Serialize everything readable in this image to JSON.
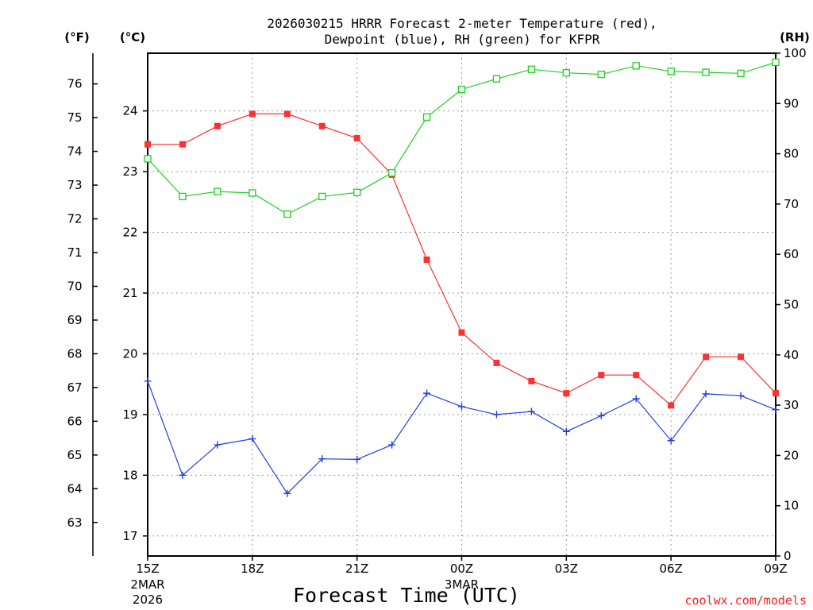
{
  "chart_data": {
    "type": "line",
    "title_line1": "2026030215 HRRR Forecast 2-meter Temperature (red),",
    "title_line2": "Dewpoint (blue), RH (green) for KFPR",
    "xlabel": "Forecast Time (UTC)",
    "credit": "coolwx.com/models",
    "units": {
      "fahrenheit": "(°F)",
      "celsius": "(°C)",
      "rh": "(RH)"
    },
    "x_hours": [
      0,
      1,
      2,
      3,
      4,
      5,
      6,
      7,
      8,
      9,
      10,
      11,
      12,
      13,
      14,
      15,
      16,
      17,
      18
    ],
    "x_range": [
      0,
      18
    ],
    "x_ticks": [
      {
        "hour": 0,
        "label": "15Z",
        "sub1": "2MAR",
        "sub2": "2026"
      },
      {
        "hour": 3,
        "label": "18Z",
        "sub1": "",
        "sub2": ""
      },
      {
        "hour": 6,
        "label": "21Z",
        "sub1": "",
        "sub2": ""
      },
      {
        "hour": 9,
        "label": "00Z",
        "sub1": "3MAR",
        "sub2": ""
      },
      {
        "hour": 12,
        "label": "03Z",
        "sub1": "",
        "sub2": ""
      },
      {
        "hour": 15,
        "label": "06Z",
        "sub1": "",
        "sub2": ""
      },
      {
        "hour": 18,
        "label": "09Z",
        "sub1": "",
        "sub2": ""
      }
    ],
    "celsius_range": [
      16.67,
      24.95
    ],
    "celsius_ticks": [
      17,
      18,
      19,
      20,
      21,
      22,
      23,
      24
    ],
    "fahrenheit_ticks": [
      63,
      64,
      65,
      66,
      67,
      68,
      69,
      70,
      71,
      72,
      73,
      74,
      75,
      76
    ],
    "rh_range": [
      0,
      100
    ],
    "rh_ticks": [
      0,
      10,
      20,
      30,
      40,
      50,
      60,
      70,
      80,
      90,
      100
    ],
    "series": [
      {
        "name": "Temperature",
        "axis": "celsius",
        "color": "#ff3030",
        "marker": "filled-square",
        "values": [
          23.45,
          23.45,
          23.75,
          23.95,
          23.95,
          23.75,
          23.55,
          22.95,
          21.55,
          20.35,
          19.85,
          19.55,
          19.35,
          19.65,
          19.65,
          19.15,
          19.95,
          19.95,
          19.35
        ]
      },
      {
        "name": "Dewpoint",
        "axis": "celsius",
        "color": "#2040e0",
        "marker": "plus",
        "values": [
          19.55,
          18.0,
          18.5,
          18.6,
          17.7,
          18.27,
          18.26,
          18.5,
          19.35,
          19.13,
          19.0,
          19.05,
          18.72,
          18.98,
          19.26,
          18.57,
          19.34,
          19.31,
          19.08
        ]
      },
      {
        "name": "RH",
        "axis": "rh",
        "color": "#20d020",
        "marker": "open-square",
        "values": [
          79,
          71.5,
          72.5,
          72.2,
          68,
          71.5,
          72.3,
          76.2,
          87.3,
          92.8,
          94.9,
          96.8,
          96.1,
          95.8,
          97.5,
          96.4,
          96.2,
          96,
          98.2
        ]
      }
    ]
  }
}
